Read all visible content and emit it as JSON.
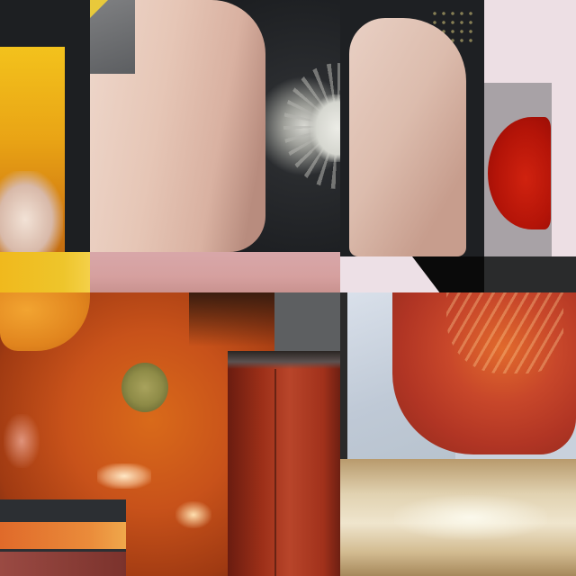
{
  "image": {
    "kind": "photo-collage",
    "subject": "tomatoes-and-fingers",
    "palette": {
      "tomato_orange": "#d96a1a",
      "tomato_red": "#b41408",
      "skin": "#e6c6b6",
      "dark_surface": "#1e2023",
      "pale_pink": "#eddfe4",
      "cream": "#efe5cd"
    }
  }
}
